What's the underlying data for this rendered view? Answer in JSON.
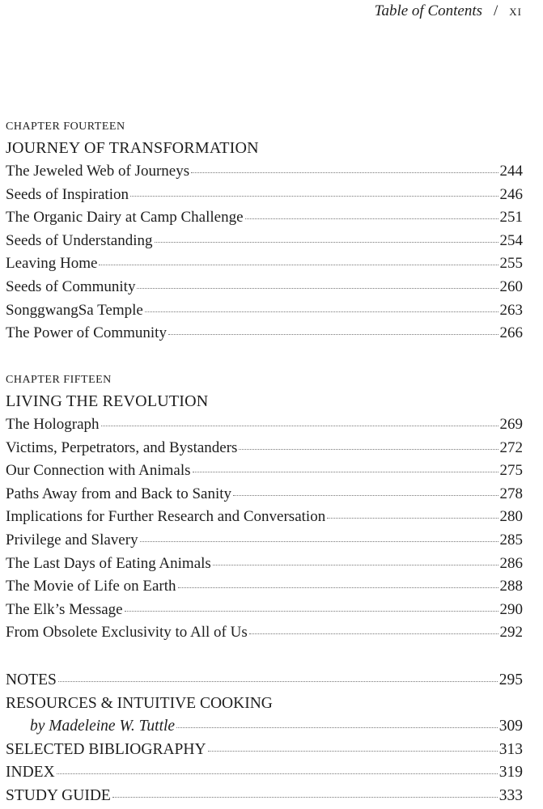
{
  "header": {
    "title": "Table of Contents",
    "separator": "/",
    "page_number": "xi"
  },
  "chapters": [
    {
      "label": "CHAPTER FOURTEEN",
      "title": "JOURNEY OF TRANSFORMATION",
      "entries": [
        {
          "title": "The Jeweled Web of Journeys",
          "page": "244"
        },
        {
          "title": "Seeds of Inspiration",
          "page": "246"
        },
        {
          "title": "The Organic Dairy at Camp Challenge",
          "page": "251"
        },
        {
          "title": "Seeds of Understanding",
          "page": "254"
        },
        {
          "title": "Leaving Home",
          "page": "255"
        },
        {
          "title": "Seeds of Community",
          "page": "260"
        },
        {
          "title": "SonggwangSa Temple",
          "page": "263"
        },
        {
          "title": "The Power of Community",
          "page": "266"
        }
      ]
    },
    {
      "label": "CHAPTER FIFTEEN",
      "title": "LIVING THE REVOLUTION",
      "entries": [
        {
          "title": "The Holograph",
          "page": "269"
        },
        {
          "title": "Victims, Perpetrators, and Bystanders",
          "page": "272"
        },
        {
          "title": "Our Connection with Animals",
          "page": "275"
        },
        {
          "title": "Paths Away from and Back to Sanity",
          "page": "278"
        },
        {
          "title": "Implications for Further Research and Conversation",
          "page": "280"
        },
        {
          "title": "Privilege and Slavery",
          "page": "285"
        },
        {
          "title": "The Last Days of Eating Animals",
          "page": "286"
        },
        {
          "title": "The Movie of Life on Earth",
          "page": "288"
        },
        {
          "title": "The Elk’s Message",
          "page": "290"
        },
        {
          "title": "From Obsolete Exclusivity to All of Us",
          "page": "292"
        }
      ]
    }
  ],
  "back_matter": [
    {
      "title": "NOTES",
      "page": "295"
    },
    {
      "title": "RESOURCES & INTUITIVE COOKING",
      "page": ""
    },
    {
      "title": "by Madeleine W. Tuttle",
      "page": "309",
      "sub": true
    },
    {
      "title": "SELECTED BIBLIOGRAPHY",
      "page": "313"
    },
    {
      "title": "INDEX",
      "page": "319"
    },
    {
      "title": "STUDY GUIDE",
      "page": "333"
    }
  ]
}
